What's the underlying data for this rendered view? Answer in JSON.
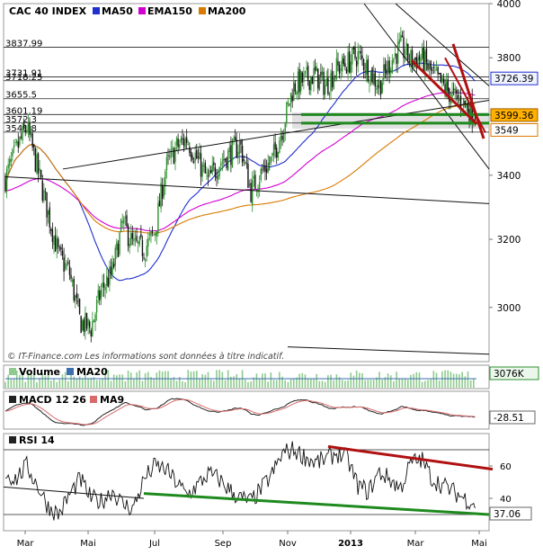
{
  "chart_data": [
    {
      "type": "candlestick",
      "title": "CAC 40 INDEX",
      "legend": [
        {
          "name": "MA50",
          "color": "#1f2fd0"
        },
        {
          "name": "EMA150",
          "color": "#d000d0"
        },
        {
          "name": "MA200",
          "color": "#d87a00"
        }
      ],
      "ylim": [
        2850,
        4000
      ],
      "y_ticks": [
        3000,
        3200,
        3400,
        3600,
        3800,
        4000
      ],
      "x_ticks": [
        "Mar",
        "Mai",
        "Jul",
        "Sep",
        "Nov",
        "2013",
        "Mar",
        "Mai"
      ],
      "price_path": [
        3390,
        3480,
        3560,
        3420,
        3280,
        3150,
        3100,
        2960,
        2940,
        3050,
        3100,
        3250,
        3180,
        3170,
        3220,
        3420,
        3490,
        3520,
        3450,
        3380,
        3440,
        3470,
        3500,
        3350,
        3410,
        3450,
        3560,
        3700,
        3720,
        3740,
        3700,
        3760,
        3780,
        3810,
        3760,
        3700,
        3780,
        3840,
        3790,
        3800,
        3740,
        3700,
        3660,
        3640,
        3600
      ],
      "levels": [
        {
          "label": "3837.99",
          "value": 3837.99
        },
        {
          "label": "3731.91",
          "value": 3731.91
        },
        {
          "label": "3718.25",
          "value": 3718.25
        },
        {
          "label": "3655.5",
          "value": 3655.5
        },
        {
          "label": "3601.19",
          "value": 3601.19
        },
        {
          "label": "3572.3",
          "value": 3572.3
        },
        {
          "label": "3541.8",
          "value": 3541.8
        }
      ],
      "price_tags": [
        {
          "label": "3726.39",
          "value": 3726.39
        },
        {
          "label": "3599.36",
          "value": 3599.36
        },
        {
          "label": "3549",
          "value": 3549
        }
      ],
      "footnote": "© IT-Finance.com    Les informations sont données à titre indicatif."
    },
    {
      "type": "bar",
      "title": "Volume",
      "legend": [
        {
          "name": "Volume",
          "color": "#8fca8f"
        },
        {
          "name": "MA20",
          "color": "#3b6fb0"
        }
      ],
      "last_value": "3076K"
    },
    {
      "type": "line",
      "title": "MACD 12 26",
      "legend": [
        {
          "name": "MACD 12 26",
          "color": "#222"
        },
        {
          "name": "MA9",
          "color": "#d86a6a"
        }
      ],
      "last_value": "-28.51"
    },
    {
      "type": "line",
      "title": "RSI 14",
      "ylim": [
        20,
        80
      ],
      "y_ticks": [
        40,
        60
      ],
      "last_value": "37.06",
      "rsi_path": [
        55,
        52,
        60,
        48,
        35,
        30,
        42,
        52,
        40,
        38,
        45,
        36,
        34,
        52,
        60,
        58,
        50,
        42,
        48,
        55,
        52,
        45,
        40,
        38,
        46,
        55,
        68,
        70,
        66,
        62,
        64,
        68,
        65,
        48,
        44,
        56,
        52,
        46,
        62,
        64,
        52,
        48,
        44,
        40,
        37
      ]
    }
  ],
  "colors": {
    "ma50": "#1f2fd0",
    "ema150": "#d000d0",
    "ma200": "#d87a00",
    "support_green": "#1e8a1e",
    "resistance_red": "#b01010",
    "candle_up": "#2f8f2f",
    "candle_down": "#111111"
  }
}
